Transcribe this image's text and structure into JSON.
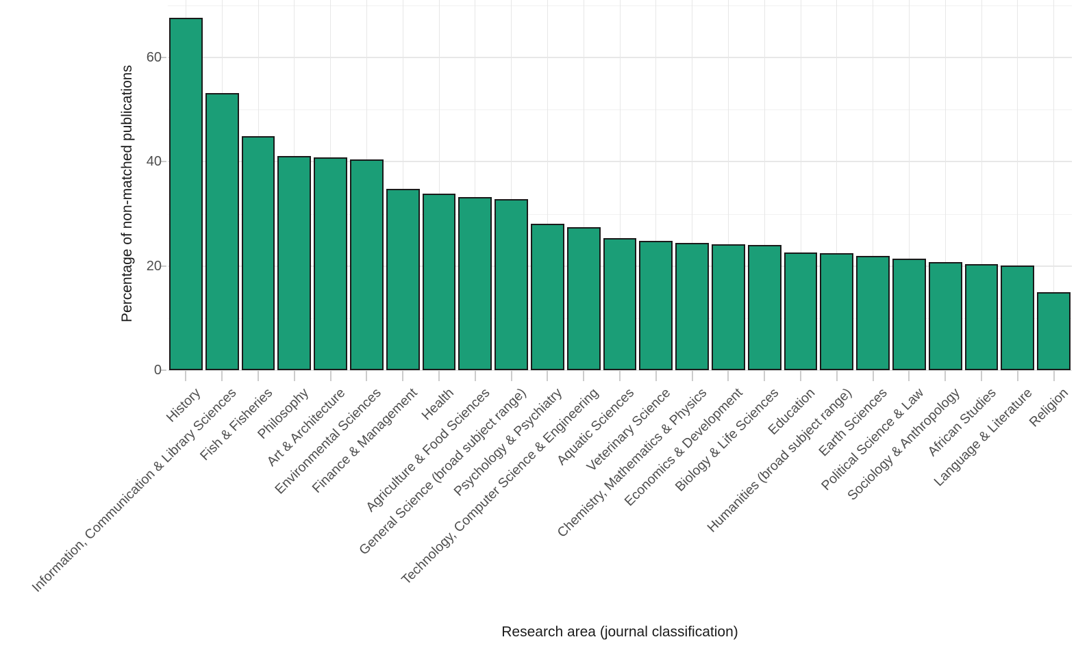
{
  "chart_data": {
    "type": "bar",
    "title": "",
    "xlabel": "Research area (journal classification)",
    "ylabel": "Percentage of non-matched publications",
    "ylim": [
      0,
      70
    ],
    "y_major_ticks": [
      0,
      20,
      40,
      60
    ],
    "y_minor_gridlines": [
      10,
      30,
      50,
      70
    ],
    "grid": "horizontal major+minor lines; one vertical major line per category; no axis lines",
    "legend_position": "none",
    "categories": [
      "History",
      "Information, Communication & Library Sciences",
      "Fish & Fisheries",
      "Philosophy",
      "Art & Architecture",
      "Environmental Sciences",
      "Finance & Management",
      "Health",
      "Agriculture & Food Sciences",
      "General Science (broad subject range)",
      "Psychology & Psychiatry",
      "Technology, Computer Science & Engineering",
      "Aquatic Sciences",
      "Veterinary Science",
      "Chemistry, Mathematics & Physics",
      "Economics & Development",
      "Biology & Life Sciences",
      "Education",
      "Humanities (broad subject range)",
      "Earth Sciences",
      "Political Science & Law",
      "Sociology & Anthropology",
      "African Studies",
      "Language & Literature",
      "Religion"
    ],
    "values": [
      67.6,
      53.2,
      44.9,
      41.1,
      40.8,
      40.4,
      34.8,
      33.9,
      33.2,
      32.8,
      28.1,
      27.4,
      25.3,
      24.8,
      24.4,
      24.1,
      24.0,
      22.6,
      22.4,
      21.9,
      21.4,
      20.7,
      20.4,
      20.1,
      15.0
    ],
    "colors": {
      "bar_fill": "#1B9E77",
      "bar_border": "#1a1a1a",
      "grid_major": "#e7e7e7",
      "grid_minor": "#f1f1f1",
      "tick_mark": "#cccccc",
      "tick_text": "#4d4d4d",
      "axis_title_text": "#1a1a1a",
      "background": "#ffffff"
    }
  }
}
